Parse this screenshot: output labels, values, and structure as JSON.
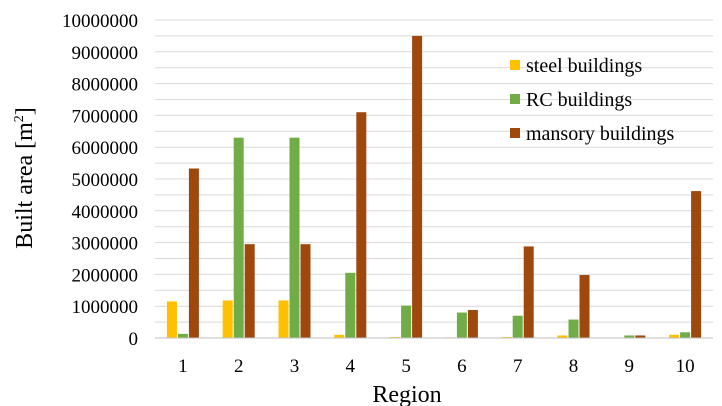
{
  "chart_data": {
    "type": "bar",
    "xlabel": "Region",
    "ylabel": "Built area [m",
    "ylabel_sup": "2",
    "ylabel_close": "]",
    "ylim": [
      0,
      10000000
    ],
    "yticks": [
      "0",
      "1000000",
      "2000000",
      "3000000",
      "4000000",
      "5000000",
      "6000000",
      "7000000",
      "8000000",
      "9000000",
      "10000000"
    ],
    "categories": [
      "1",
      "2",
      "3",
      "4",
      "5",
      "6",
      "7",
      "8",
      "9",
      "10"
    ],
    "series": [
      {
        "name": "steel buildings",
        "color": "#FFC000",
        "values": [
          1150000,
          1180000,
          1180000,
          100000,
          30000,
          20000,
          30000,
          80000,
          0,
          100000
        ]
      },
      {
        "name": "RC buildings",
        "color": "#70AD47",
        "values": [
          130000,
          6300000,
          6300000,
          2050000,
          1020000,
          800000,
          700000,
          580000,
          80000,
          180000
        ]
      },
      {
        "name": "mansory buildings",
        "color": "#9E480E",
        "values": [
          5330000,
          2950000,
          2950000,
          7100000,
          9500000,
          880000,
          2880000,
          1980000,
          80000,
          4620000
        ]
      }
    ],
    "legend_position": "top-right",
    "grid": true
  }
}
